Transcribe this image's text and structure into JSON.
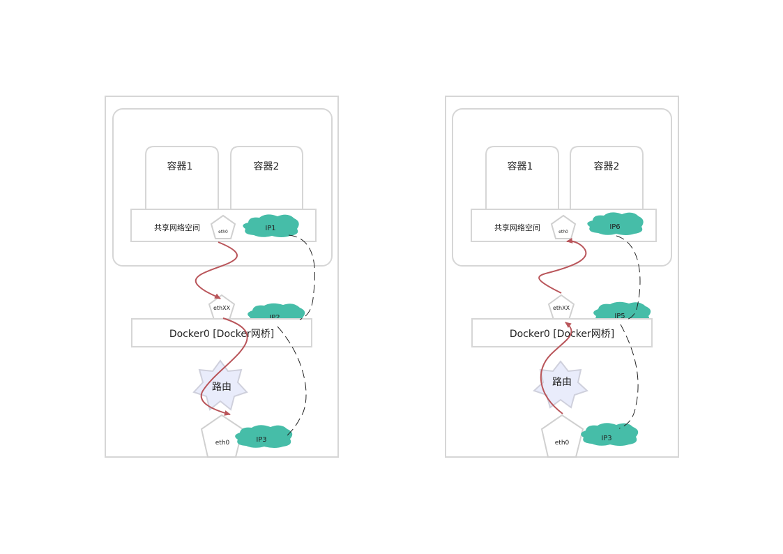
{
  "diagrams": [
    {
      "container1": "容器1",
      "container2": "容器2",
      "shared_ns": "共享网络空间",
      "inner_eth": "eth0",
      "ip_top": "IP1",
      "ethxx": "ethXX",
      "ip_mid": "IP2",
      "bridge": "Docker0 [Docker网桥]",
      "router": "路由",
      "host_eth": "eth0",
      "ip_bottom": "IP3"
    },
    {
      "container1": "容器1",
      "container2": "容器2",
      "shared_ns": "共享网络空间",
      "inner_eth": "eth0",
      "ip_top": "IP6",
      "ethxx": "ethXX",
      "ip_mid": "IP5",
      "bridge": "Docker0 [Docker网桥]",
      "router": "路由",
      "host_eth": "eth0",
      "ip_bottom": "IP3"
    }
  ],
  "colors": {
    "cloud": "#46bda8",
    "arrow": "#b9555a",
    "router_fill": "#e9ecfb",
    "border": "#d6d6d6"
  }
}
